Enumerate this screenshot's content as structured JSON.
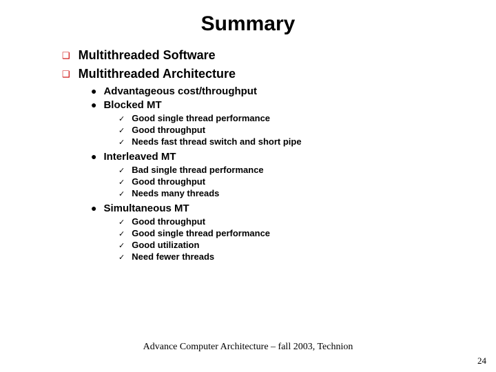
{
  "title": "Summary",
  "top": [
    {
      "label": "Multithreaded Software"
    },
    {
      "label": "Multithreaded Architecture"
    }
  ],
  "groups": [
    {
      "label": "Advantageous cost/throughput",
      "items": []
    },
    {
      "label": "Blocked MT",
      "items": [
        "Good single thread performance",
        "Good throughput",
        "Needs fast thread switch and short pipe"
      ]
    },
    {
      "label": "Interleaved MT",
      "items": [
        "Bad single thread performance",
        "Good throughput",
        "Needs many threads"
      ]
    },
    {
      "label": "Simultaneous MT",
      "items": [
        "Good throughput",
        "Good single thread performance",
        "Good utilization",
        "Need fewer threads"
      ]
    }
  ],
  "footer": "Advance Computer Architecture – fall 2003, Technion",
  "page": "24",
  "bullets": {
    "l1": "❑",
    "l2": "●",
    "l3": "✓"
  },
  "colors": {
    "l1_bullet": "#cc0000"
  }
}
